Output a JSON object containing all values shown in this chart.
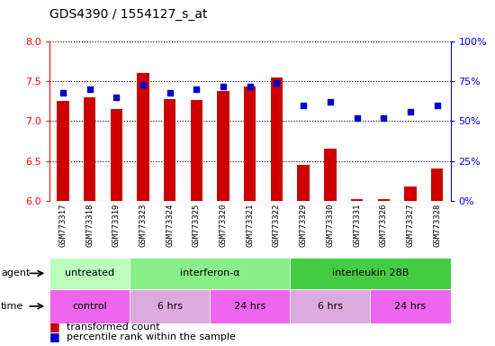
{
  "title": "GDS4390 / 1554127_s_at",
  "samples": [
    "GSM773317",
    "GSM773318",
    "GSM773319",
    "GSM773323",
    "GSM773324",
    "GSM773325",
    "GSM773320",
    "GSM773321",
    "GSM773322",
    "GSM773329",
    "GSM773330",
    "GSM773331",
    "GSM773326",
    "GSM773327",
    "GSM773328"
  ],
  "transformed_count": [
    7.25,
    7.3,
    7.15,
    7.6,
    7.28,
    7.27,
    7.38,
    7.43,
    7.55,
    6.45,
    6.65,
    6.02,
    6.02,
    6.18,
    6.4
  ],
  "percentile_rank": [
    68,
    70,
    65,
    73,
    68,
    70,
    72,
    72,
    74,
    60,
    62,
    52,
    52,
    56,
    60
  ],
  "ylim_left": [
    6.0,
    8.0
  ],
  "ylim_right": [
    0,
    100
  ],
  "yticks_left": [
    6.0,
    6.5,
    7.0,
    7.5,
    8.0
  ],
  "yticks_right": [
    0,
    25,
    50,
    75,
    100
  ],
  "ytick_labels_right": [
    "0%",
    "25%",
    "50%",
    "75%",
    "100%"
  ],
  "bar_color": "#cc0000",
  "dot_color": "#0000cc",
  "agent_groups": [
    {
      "label": "untreated",
      "start": 0,
      "end": 3,
      "color": "#bbffbb"
    },
    {
      "label": "interferon-α",
      "start": 3,
      "end": 9,
      "color": "#88ee88"
    },
    {
      "label": "interleukin 28B",
      "start": 9,
      "end": 15,
      "color": "#44cc44"
    }
  ],
  "time_groups": [
    {
      "label": "control",
      "start": 0,
      "end": 3,
      "color": "#ee66ee"
    },
    {
      "label": "6 hrs",
      "start": 3,
      "end": 6,
      "color": "#ddaadd"
    },
    {
      "label": "24 hrs",
      "start": 6,
      "end": 9,
      "color": "#ee66ee"
    },
    {
      "label": "6 hrs",
      "start": 9,
      "end": 12,
      "color": "#ddaadd"
    },
    {
      "label": "24 hrs",
      "start": 12,
      "end": 15,
      "color": "#ee66ee"
    }
  ],
  "legend_items": [
    {
      "label": "transformed count",
      "color": "#cc0000"
    },
    {
      "label": "percentile rank within the sample",
      "color": "#0000cc"
    }
  ],
  "background_color": "#ffffff",
  "plot_bg_color": "#ffffff",
  "tick_label_area_color": "#cccccc"
}
